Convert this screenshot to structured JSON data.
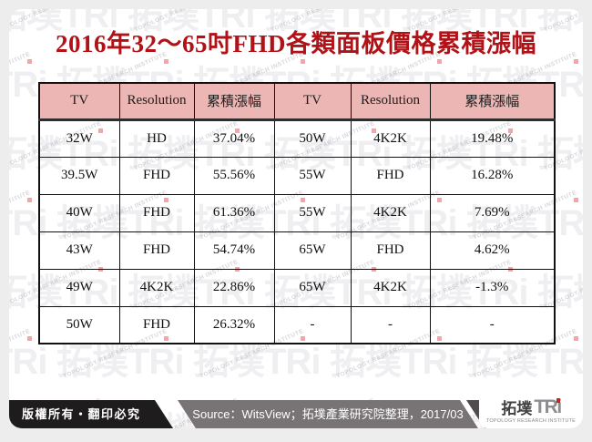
{
  "slide": {
    "title": "2016年32～65吋FHD各類面板價格累積漲幅"
  },
  "table": {
    "headers": [
      "TV",
      "Resolution",
      "累積漲幅",
      "TV",
      "Resolution",
      "累積漲幅"
    ],
    "rows": [
      [
        "32W",
        "HD",
        "37.04%",
        "50W",
        "4K2K",
        "19.48%"
      ],
      [
        "39.5W",
        "FHD",
        "55.56%",
        "55W",
        "FHD",
        "16.28%"
      ],
      [
        "40W",
        "FHD",
        "61.36%",
        "55W",
        "4K2K",
        "7.69%"
      ],
      [
        "43W",
        "FHD",
        "54.74%",
        "65W",
        "FHD",
        "4.62%"
      ],
      [
        "49W",
        "4K2K",
        "22.86%",
        "65W",
        "4K2K",
        "-1.3%"
      ],
      [
        "50W",
        "FHD",
        "26.32%",
        "-",
        "-",
        "-"
      ]
    ]
  },
  "footer": {
    "copyright": "版權所有‧翻印必究",
    "source": "Source：WitsView；拓墣產業研究院整理，2017/03"
  },
  "logo": {
    "cjk": "拓墣",
    "latin": "TRi",
    "subtitle": "TOPOLOGY RESEARCH INSTITUTE"
  },
  "watermark": {
    "main": "拓墣TRi",
    "subtitle": "TOPOLOGY RESEARCH INSTITUTE"
  },
  "colors": {
    "title_red": "#B11217",
    "header_pink": "#EBB6B4",
    "bar_black": "#1E1C1D",
    "bar_gray": "#787476",
    "logo_dot_red": "#C22822",
    "page_margin": "#EDEDED"
  }
}
